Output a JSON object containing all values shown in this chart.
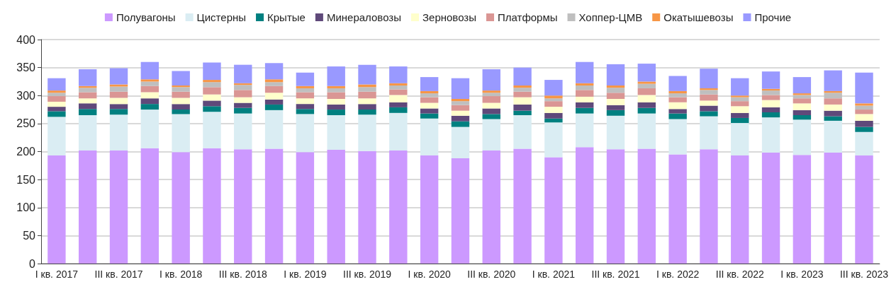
{
  "chart_data": {
    "type": "bar",
    "stacked": true,
    "categories": [
      "I кв. 2017",
      null,
      "III кв. 2017",
      null,
      "I кв. 2018",
      null,
      "III кв. 2018",
      null,
      "I кв. 2019",
      null,
      "III кв. 2019",
      null,
      "I кв. 2020",
      null,
      "III кв. 2020",
      null,
      "I кв. 2021",
      null,
      "III кв. 2021",
      null,
      "I кв. 2022",
      null,
      "III кв. 2022",
      null,
      "I кв. 2023",
      null,
      "III кв. 2023"
    ],
    "series": [
      {
        "name": "Полувагоны",
        "color": "#cc99ff",
        "values": [
          193,
          202,
          202,
          206,
          199,
          206,
          204,
          205,
          199,
          203,
          201,
          202,
          193,
          188,
          202,
          205,
          190,
          208,
          204,
          205,
          195,
          204,
          193,
          198,
          194,
          198,
          193
        ]
      },
      {
        "name": "Цистерны",
        "color": "#daedf3",
        "values": [
          69,
          63,
          64,
          69,
          68,
          65,
          64,
          69,
          68,
          62,
          65,
          67,
          66,
          56,
          56,
          60,
          62,
          60,
          60,
          63,
          63,
          59,
          58,
          63,
          63,
          57,
          42
        ]
      },
      {
        "name": "Крытые",
        "color": "#008080",
        "values": [
          10,
          11,
          10,
          10,
          8,
          10,
          10,
          10,
          9,
          10,
          9,
          10,
          9,
          10,
          9,
          8,
          7,
          10,
          10,
          10,
          10,
          9,
          9,
          9,
          8,
          8,
          9
        ]
      },
      {
        "name": "Минераловозы",
        "color": "#5f497a",
        "values": [
          8,
          10,
          9,
          10,
          10,
          10,
          9,
          9,
          9,
          9,
          10,
          9,
          9,
          10,
          10,
          11,
          10,
          10,
          9,
          10,
          8,
          10,
          9,
          9,
          9,
          10,
          11
        ]
      },
      {
        "name": "Зерновозы",
        "color": "#ffffcc",
        "values": [
          9,
          9,
          11,
          11,
          11,
          11,
          10,
          12,
          10,
          10,
          10,
          13,
          10,
          9,
          10,
          13,
          11,
          10,
          11,
          13,
          12,
          9,
          12,
          13,
          12,
          11,
          12
        ]
      },
      {
        "name": "Платформы",
        "color": "#da9694",
        "values": [
          10,
          11,
          11,
          11,
          11,
          13,
          13,
          12,
          11,
          12,
          12,
          10,
          10,
          10,
          12,
          10,
          10,
          12,
          11,
          12,
          9,
          11,
          9,
          9,
          9,
          11,
          8
        ]
      },
      {
        "name": "Хоппер-ЦМВ",
        "color": "#bfbfbf",
        "values": [
          6,
          8,
          9,
          8,
          8,
          9,
          9,
          7,
          7,
          7,
          8,
          7,
          7,
          7,
          6,
          7,
          5,
          8,
          9,
          8,
          7,
          8,
          7,
          8,
          6,
          10,
          7
        ]
      },
      {
        "name": "Окатышевозы",
        "color": "#f79646",
        "values": [
          4,
          3,
          4,
          4,
          3,
          4,
          3,
          5,
          4,
          4,
          5,
          4,
          4,
          4,
          4,
          4,
          5,
          4,
          4,
          4,
          4,
          3,
          3,
          3,
          3,
          3,
          4
        ]
      },
      {
        "name": "Прочие",
        "color": "#9999ff",
        "values": [
          22,
          30,
          29,
          31,
          26,
          31,
          33,
          29,
          24,
          35,
          35,
          30,
          25,
          37,
          38,
          32,
          28,
          38,
          38,
          32,
          27,
          35,
          31,
          31,
          29,
          37,
          55
        ]
      }
    ],
    "ylim": [
      0,
      400
    ],
    "yticks": [
      0,
      50,
      100,
      150,
      200,
      250,
      300,
      350,
      400
    ],
    "grid": "y",
    "legend": "top"
  }
}
